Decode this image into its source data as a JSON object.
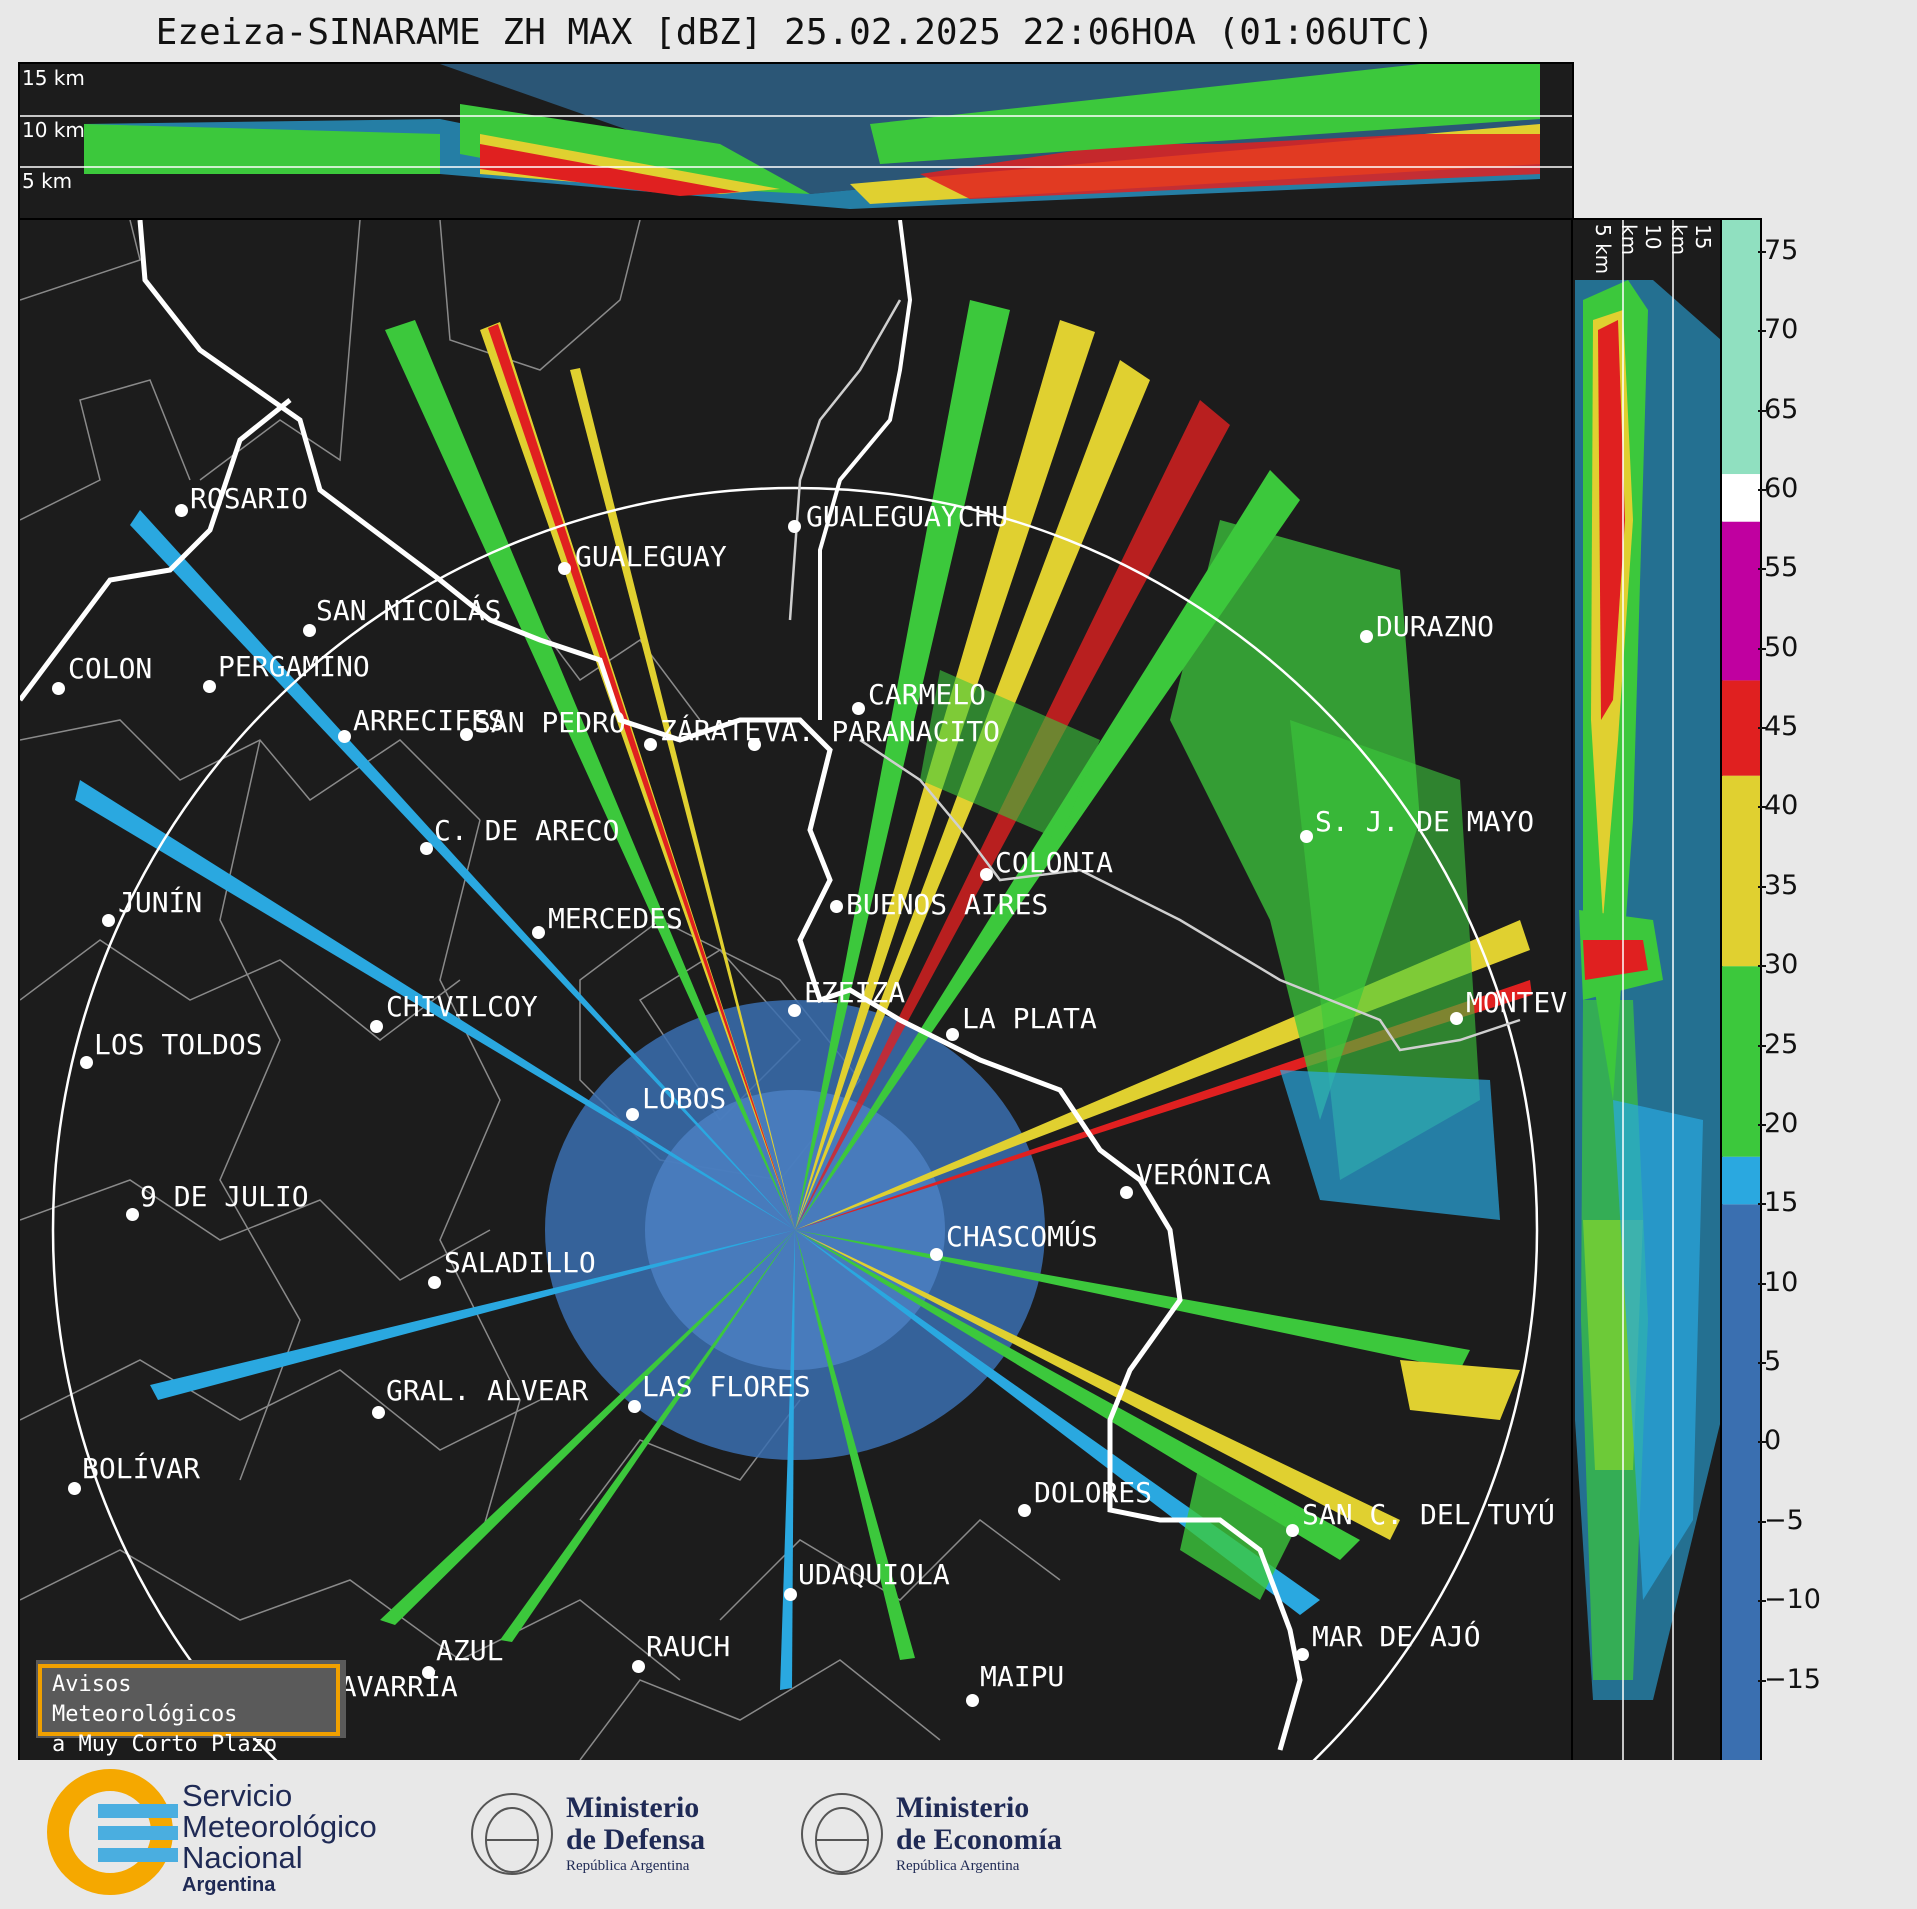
{
  "title": "Ezeiza-SINARAME ZH MAX [dBZ] 25.02.2025 22:06HOA (01:06UTC)",
  "top_panel": {
    "altitude_labels": [
      "15 km",
      "10 km",
      "5 km"
    ]
  },
  "side_panel": {
    "altitude_labels": [
      "5 km",
      "10 km",
      "15 km"
    ]
  },
  "colorbar": {
    "unit": "dBZ",
    "ticks": [
      "75",
      "70",
      "65",
      "60",
      "55",
      "50",
      "45",
      "40",
      "35",
      "30",
      "25",
      "20",
      "15",
      "10",
      "5",
      "0",
      "−5",
      "−10",
      "−15"
    ],
    "range": [
      -20,
      77
    ],
    "bands": [
      {
        "from": -20,
        "to": 15,
        "color": "#3a6fb0"
      },
      {
        "from": 15,
        "to": 18,
        "color": "#2aa8e0"
      },
      {
        "from": 18,
        "to": 30,
        "color": "#3cc83c"
      },
      {
        "from": 30,
        "to": 42,
        "color": "#e0d030"
      },
      {
        "from": 42,
        "to": 48,
        "color": "#e02020"
      },
      {
        "from": 48,
        "to": 58,
        "color": "#c000a0"
      },
      {
        "from": 58,
        "to": 61,
        "color": "#ffffff"
      },
      {
        "from": 61,
        "to": 77,
        "color": "#90e0c0"
      }
    ]
  },
  "cities": [
    {
      "name": "ROSARIO"
    },
    {
      "name": "GUALEGUAYCHU"
    },
    {
      "name": "GUALEGUAY"
    },
    {
      "name": "SAN NICOLÁS"
    },
    {
      "name": "DURAZNO"
    },
    {
      "name": "SAN PEDRO"
    },
    {
      "name": "VA. PARANACITO"
    },
    {
      "name": "COLON"
    },
    {
      "name": "PERGAMINO"
    },
    {
      "name": "CARMELO"
    },
    {
      "name": "ARRECIFES"
    },
    {
      "name": "ZÁRATE"
    },
    {
      "name": "S. J. DE MAYO"
    },
    {
      "name": "C. DE ARECO"
    },
    {
      "name": "COLONIA"
    },
    {
      "name": "JUNÍN"
    },
    {
      "name": "BUENOS AIRES"
    },
    {
      "name": "MERCEDES"
    },
    {
      "name": "EZEIZA"
    },
    {
      "name": "MONTEV"
    },
    {
      "name": "CHIVILCOY"
    },
    {
      "name": "LA PLATA"
    },
    {
      "name": "LOS TOLDOS"
    },
    {
      "name": "LOBOS"
    },
    {
      "name": "VERÓNICA"
    },
    {
      "name": "9 DE JULIO"
    },
    {
      "name": "CHASCOMÚS"
    },
    {
      "name": "SALADILLO"
    },
    {
      "name": "GRAL. ALVEAR"
    },
    {
      "name": "LAS FLORES"
    },
    {
      "name": "BOLÍVAR"
    },
    {
      "name": "DOLORES"
    },
    {
      "name": "SAN C. DEL TUYÚ"
    },
    {
      "name": "UDAQUIOLA"
    },
    {
      "name": "AZUL"
    },
    {
      "name": "RAUCH"
    },
    {
      "name": "MAR DE AJÓ"
    },
    {
      "name": "OLAVARRÍA"
    },
    {
      "name": "MAIPU"
    }
  ],
  "avisos": {
    "line1": "Avisos Meteorológicos",
    "line2": "a Muy Corto Plazo"
  },
  "logos": {
    "smn": {
      "line1": "Servicio",
      "line2": "Meteorológico",
      "line3": "Nacional",
      "line4": "Argentina"
    },
    "defensa": {
      "line1": "Ministerio",
      "line2": "de Defensa",
      "line3": "República Argentina"
    },
    "economia": {
      "line1": "Ministerio",
      "line2": "de Economía",
      "line3": "República Argentina"
    }
  }
}
